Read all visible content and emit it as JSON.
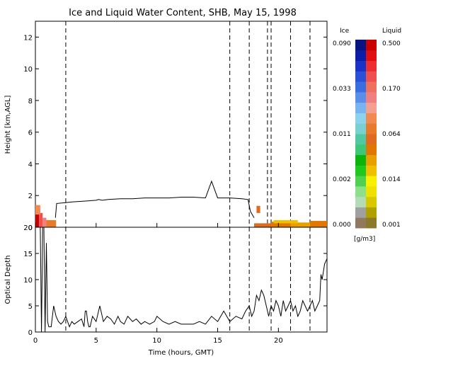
{
  "title": "Ice and Liquid Water Content, SHB, May 15, 1998",
  "chart_data": [
    {
      "type": "heatmap",
      "panel": "water-content",
      "ylabel": "Height [km,AGL]",
      "xlim": [
        0,
        24
      ],
      "ylim": [
        0,
        13
      ],
      "yticks": [
        "0",
        "2",
        "4",
        "6",
        "8",
        "10",
        "12"
      ],
      "grid": false,
      "vertical_markers": [
        2.5,
        16.0,
        17.6,
        19.1,
        19.4,
        21.0,
        22.6
      ],
      "cloud_top": [
        [
          1.65,
          0.6
        ],
        [
          1.75,
          1.5
        ],
        [
          2.5,
          1.55
        ],
        [
          3.0,
          1.6
        ],
        [
          4.0,
          1.65
        ],
        [
          5.0,
          1.7
        ],
        [
          5.2,
          1.75
        ],
        [
          5.5,
          1.7
        ],
        [
          6.0,
          1.75
        ],
        [
          7.0,
          1.8
        ],
        [
          8.0,
          1.8
        ],
        [
          9.0,
          1.85
        ],
        [
          10.0,
          1.85
        ],
        [
          11.0,
          1.85
        ],
        [
          12.0,
          1.9
        ],
        [
          13.0,
          1.9
        ],
        [
          14.0,
          1.85
        ],
        [
          14.5,
          2.9
        ],
        [
          15.0,
          1.85
        ],
        [
          16.0,
          1.85
        ],
        [
          17.0,
          1.8
        ],
        [
          17.5,
          1.75
        ],
        [
          17.7,
          1.0
        ],
        [
          18.0,
          0.6
        ]
      ],
      "colorbar": {
        "ice_label": "Ice",
        "liquid_label": "Liquid",
        "units": "[g/m3]",
        "ice_ticks": [
          "0.000",
          "0.002",
          "0.011",
          "0.033",
          "0.090"
        ],
        "liquid_ticks": [
          "0.001",
          "0.014",
          "0.064",
          "0.170",
          "0.500"
        ],
        "ice_colors": [
          "#8f7a60",
          "#a0a0a0",
          "#b4dcb4",
          "#8ce08c",
          "#50d050",
          "#1ec81e",
          "#0ab40a",
          "#3cc878",
          "#50c8a0",
          "#78d0d0",
          "#8cd2ee",
          "#78b4f0",
          "#5a8ee8",
          "#3a6ee0",
          "#2a50d8",
          "#1a32c8",
          "#0c1ea8",
          "#0a1480"
        ],
        "liquid_colors": [
          "#8a7a2a",
          "#b0a000",
          "#d8c800",
          "#f0e000",
          "#f8f000",
          "#f0c000",
          "#e8a000",
          "#e07800",
          "#e06a1e",
          "#e87a2a",
          "#f08a50",
          "#f4a090",
          "#f08080",
          "#f07060",
          "#ee5050",
          "#ec3030",
          "#e01010",
          "#c80000"
        ]
      }
    },
    {
      "type": "line",
      "panel": "optical-depth",
      "ylabel": "Optical Depth",
      "xlabel": "Time (hours, GMT)",
      "xlim": [
        0,
        24
      ],
      "ylim": [
        0,
        20
      ],
      "xticks": [
        "0",
        "5",
        "10",
        "15",
        "20"
      ],
      "yticks": [
        "0",
        "5",
        "10",
        "15",
        "20"
      ],
      "grid": false,
      "vertical_markers": [
        2.5,
        16.0,
        17.6,
        19.4,
        21.0,
        22.6
      ],
      "x": [
        0.0,
        0.2,
        0.3,
        0.4,
        0.5,
        0.6,
        0.7,
        0.8,
        0.9,
        1.0,
        1.1,
        1.3,
        1.5,
        1.7,
        1.9,
        2.1,
        2.3,
        2.5,
        2.8,
        3.0,
        3.2,
        3.5,
        3.8,
        4.0,
        4.1,
        4.2,
        4.3,
        4.4,
        4.5,
        4.7,
        5.0,
        5.3,
        5.6,
        5.9,
        6.2,
        6.5,
        6.8,
        7.0,
        7.3,
        7.6,
        8.0,
        8.3,
        8.7,
        9.0,
        9.4,
        9.8,
        10.0,
        10.5,
        11.0,
        11.5,
        12.0,
        12.5,
        13.0,
        13.5,
        14.0,
        14.5,
        15.0,
        15.5,
        16.0,
        16.5,
        17.0,
        17.3,
        17.6,
        17.8,
        18.0,
        18.2,
        18.4,
        18.6,
        18.8,
        19.0,
        19.2,
        19.4,
        19.6,
        19.8,
        20.0,
        20.2,
        20.4,
        20.6,
        20.8,
        21.0,
        21.2,
        21.4,
        21.6,
        21.8,
        22.0,
        22.2,
        22.4,
        22.6,
        22.8,
        23.0,
        23.2,
        23.4,
        23.5,
        23.6,
        23.8,
        24.0
      ],
      "y": [
        20,
        20,
        20,
        20,
        0,
        20,
        20,
        0,
        17,
        2,
        1,
        1,
        5,
        3,
        2,
        1.5,
        2,
        3,
        1,
        2,
        1.5,
        2,
        2.5,
        1,
        4,
        4,
        2,
        1,
        1,
        3,
        2,
        5,
        2,
        3,
        2.5,
        1.5,
        3,
        2,
        1.5,
        3,
        2,
        2.5,
        1.5,
        2,
        1.5,
        2,
        3,
        2,
        1.5,
        2,
        1.5,
        1.5,
        1.5,
        2,
        1.5,
        3,
        2,
        4,
        2,
        3,
        2.5,
        4,
        5,
        3,
        4,
        7,
        6,
        8,
        7,
        5,
        3,
        5,
        4,
        6,
        5,
        3,
        6,
        4,
        5,
        6,
        4,
        5,
        3,
        4,
        6,
        5,
        4,
        5,
        6,
        4,
        5,
        6,
        11,
        10,
        13,
        14
      ]
    }
  ]
}
